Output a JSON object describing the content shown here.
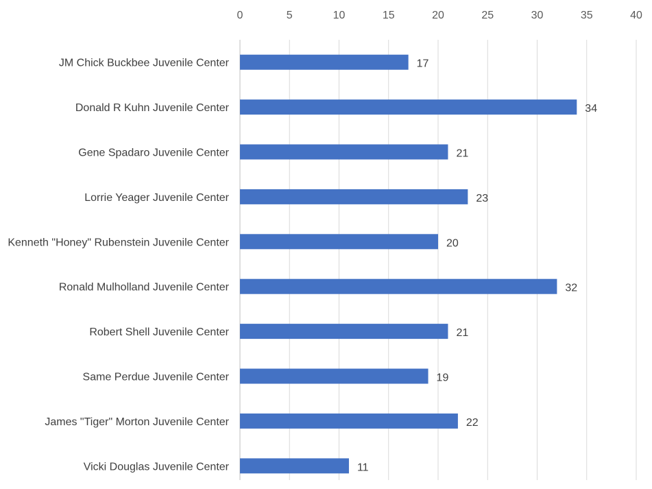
{
  "chart_data": {
    "type": "bar",
    "orientation": "horizontal",
    "categories": [
      "JM Chick Buckbee Juvenile Center",
      "Donald R Kuhn Juvenile Center",
      "Gene Spadaro Juvenile Center",
      "Lorrie Yeager Juvenile Center",
      "Kenneth \"Honey\" Rubenstein Juvenile Center",
      "Ronald Mulholland Juvenile Center",
      "Robert Shell Juvenile Center",
      "Same Perdue Juvenile Center",
      "James \"Tiger\" Morton Juvenile Center",
      "Vicki Douglas Juvenile Center"
    ],
    "values": [
      17,
      34,
      21,
      23,
      20,
      32,
      21,
      19,
      22,
      11
    ],
    "xlim": [
      0,
      40
    ],
    "xticks": [
      0,
      5,
      10,
      15,
      20,
      25,
      30,
      35,
      40
    ],
    "x_axis_position": "top",
    "grid": true,
    "data_labels": true,
    "bar_color": "#4472C4",
    "grid_color": "#d9d9d9",
    "title": "",
    "xlabel": "",
    "ylabel": ""
  }
}
